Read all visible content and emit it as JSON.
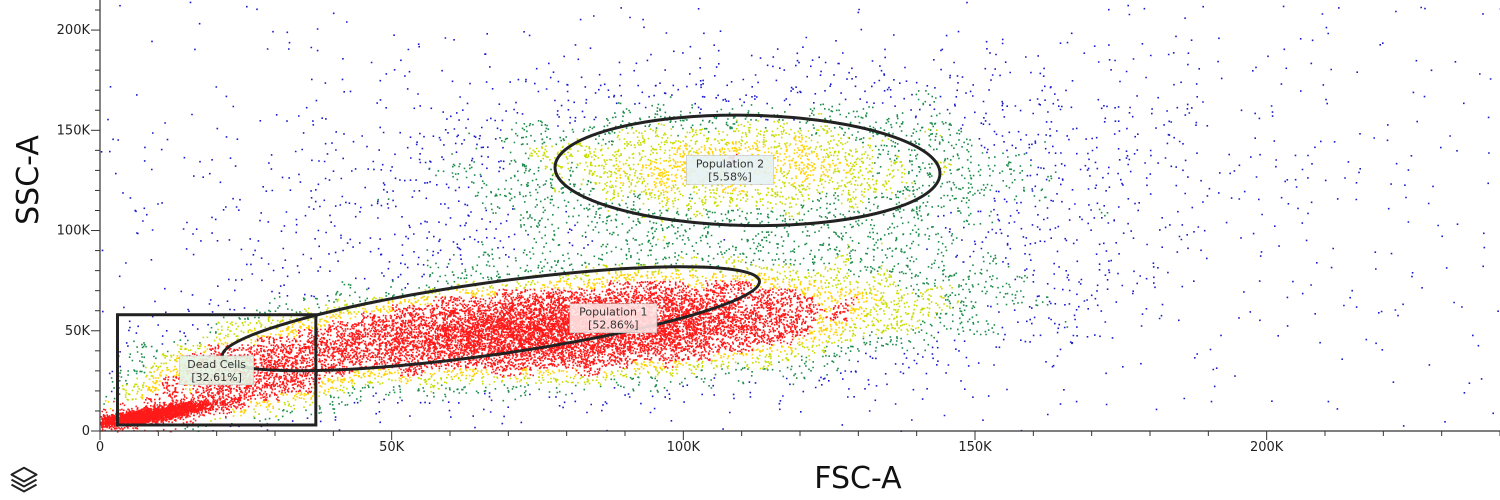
{
  "toolbar": {
    "layers_icon": "layers-icon"
  },
  "chart_data": {
    "type": "scatter",
    "subtype": "flow-cytometry-density-dot-plot",
    "title": "",
    "xlabel": "FSC-A",
    "ylabel": "SSC-A",
    "xlim": [
      0,
      240000
    ],
    "ylim": [
      0,
      215000
    ],
    "xticks": [
      {
        "value": 0,
        "label": "0"
      },
      {
        "value": 50000,
        "label": "50K"
      },
      {
        "value": 100000,
        "label": "100K"
      },
      {
        "value": 150000,
        "label": "150K"
      },
      {
        "value": 200000,
        "label": "200K"
      }
    ],
    "yticks": [
      {
        "value": 0,
        "label": "0"
      },
      {
        "value": 50000,
        "label": "50K"
      },
      {
        "value": 100000,
        "label": "100K"
      },
      {
        "value": 150000,
        "label": "150K"
      },
      {
        "value": 200000,
        "label": "200K"
      }
    ],
    "grid": false,
    "density_colors": [
      "#1a1acc",
      "#1c8c4a",
      "#c8dc00",
      "#ffd200",
      "#ff1a1a"
    ],
    "populations": [
      {
        "type": "dense",
        "cx": 75000,
        "cy": 50000,
        "sx": 22000,
        "sy": 11000,
        "rho": 0.3,
        "n": 7000
      },
      {
        "type": "dense",
        "cx": 95000,
        "cy": 55000,
        "sx": 28000,
        "sy": 15000,
        "rho": 0.35,
        "n": 5000
      },
      {
        "type": "dense",
        "cx": 8000,
        "cy": 8000,
        "sx": 6000,
        "sy": 3500,
        "rho": 0.85,
        "n": 2800
      },
      {
        "type": "dense",
        "cx": 25000,
        "cy": 28000,
        "sx": 12000,
        "sy": 12000,
        "rho": 0.4,
        "n": 2200
      },
      {
        "type": "dense",
        "cx": 108000,
        "cy": 132000,
        "sx": 22000,
        "sy": 16000,
        "rho": 0.0,
        "n": 2200
      },
      {
        "type": "diffuse",
        "cx": 110000,
        "cy": 110000,
        "sx": 45000,
        "sy": 40000,
        "rho": 0.2,
        "n": 2600
      },
      {
        "type": "sparse",
        "xmin": 0,
        "xmax": 240000,
        "ymin": 0,
        "ymax": 215000,
        "n": 500
      }
    ],
    "gates": [
      {
        "name": "Population 1",
        "percent": "[52.86%]",
        "label": "Population 1",
        "shape": "ellipse",
        "cx": 67000,
        "cy": 56000,
        "rx": 46500,
        "ry": 18000,
        "angle": 8,
        "label_x": 88000,
        "label_y": 56000,
        "label_bg": "#ffe4e4"
      },
      {
        "name": "Population 2",
        "percent": "[5.58%]",
        "label": "Population 2",
        "shape": "ellipse",
        "cx": 111000,
        "cy": 130000,
        "rx": 33000,
        "ry": 27500,
        "angle": -1,
        "label_x": 108000,
        "label_y": 130000,
        "label_bg": "#e6f2f6"
      },
      {
        "name": "Dead Cells",
        "percent": "[32.61%]",
        "label": "Dead Cells",
        "shape": "rect",
        "x0": 3000,
        "x1": 37000,
        "y0": 3000,
        "y1": 58000,
        "label_x": 20000,
        "label_y": 30000,
        "label_bg": "#e4f4e4"
      }
    ]
  }
}
